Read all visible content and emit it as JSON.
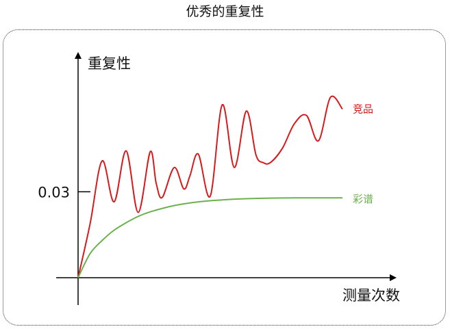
{
  "chart_data": {
    "type": "line",
    "title": "优秀的重复性",
    "xlabel": "测量次数",
    "ylabel": "重复性",
    "y_ticks": [
      {
        "value": 0.03,
        "label": "0.03"
      }
    ],
    "ylim": [
      0,
      0.097
    ],
    "xlim": [
      0,
      27.4
    ],
    "grid": false,
    "legend": "inline labels at line ends",
    "series": [
      {
        "name": "竞品",
        "color": "#d7191c",
        "x": [
          0,
          1,
          2,
          3,
          4,
          5,
          6,
          6.5,
          7,
          8,
          8.8,
          9.3,
          10,
          11,
          12,
          13,
          14,
          14.8,
          15.4,
          16,
          17,
          18,
          19,
          20,
          21,
          22
        ],
        "y": [
          0,
          0.0188,
          0.0408,
          0.0265,
          0.0443,
          0.0228,
          0.044,
          0.033,
          0.028,
          0.0385,
          0.031,
          0.0355,
          0.0432,
          0.0285,
          0.0604,
          0.0385,
          0.0582,
          0.0429,
          0.0402,
          0.0402,
          0.0452,
          0.0538,
          0.0567,
          0.0478,
          0.063,
          0.0589
        ]
      },
      {
        "name": "彩谱",
        "color": "#6ab04c",
        "x": [
          0,
          1,
          2,
          3,
          4,
          5,
          6,
          8,
          10,
          12,
          14,
          16,
          18,
          20,
          22
        ],
        "y": [
          0,
          0.0084,
          0.013,
          0.0166,
          0.0192,
          0.0214,
          0.023,
          0.0252,
          0.0265,
          0.0272,
          0.0276,
          0.0278,
          0.0279,
          0.0279,
          0.0279
        ]
      }
    ]
  },
  "colors": {
    "axis": "#000000",
    "frame": "#333333"
  }
}
